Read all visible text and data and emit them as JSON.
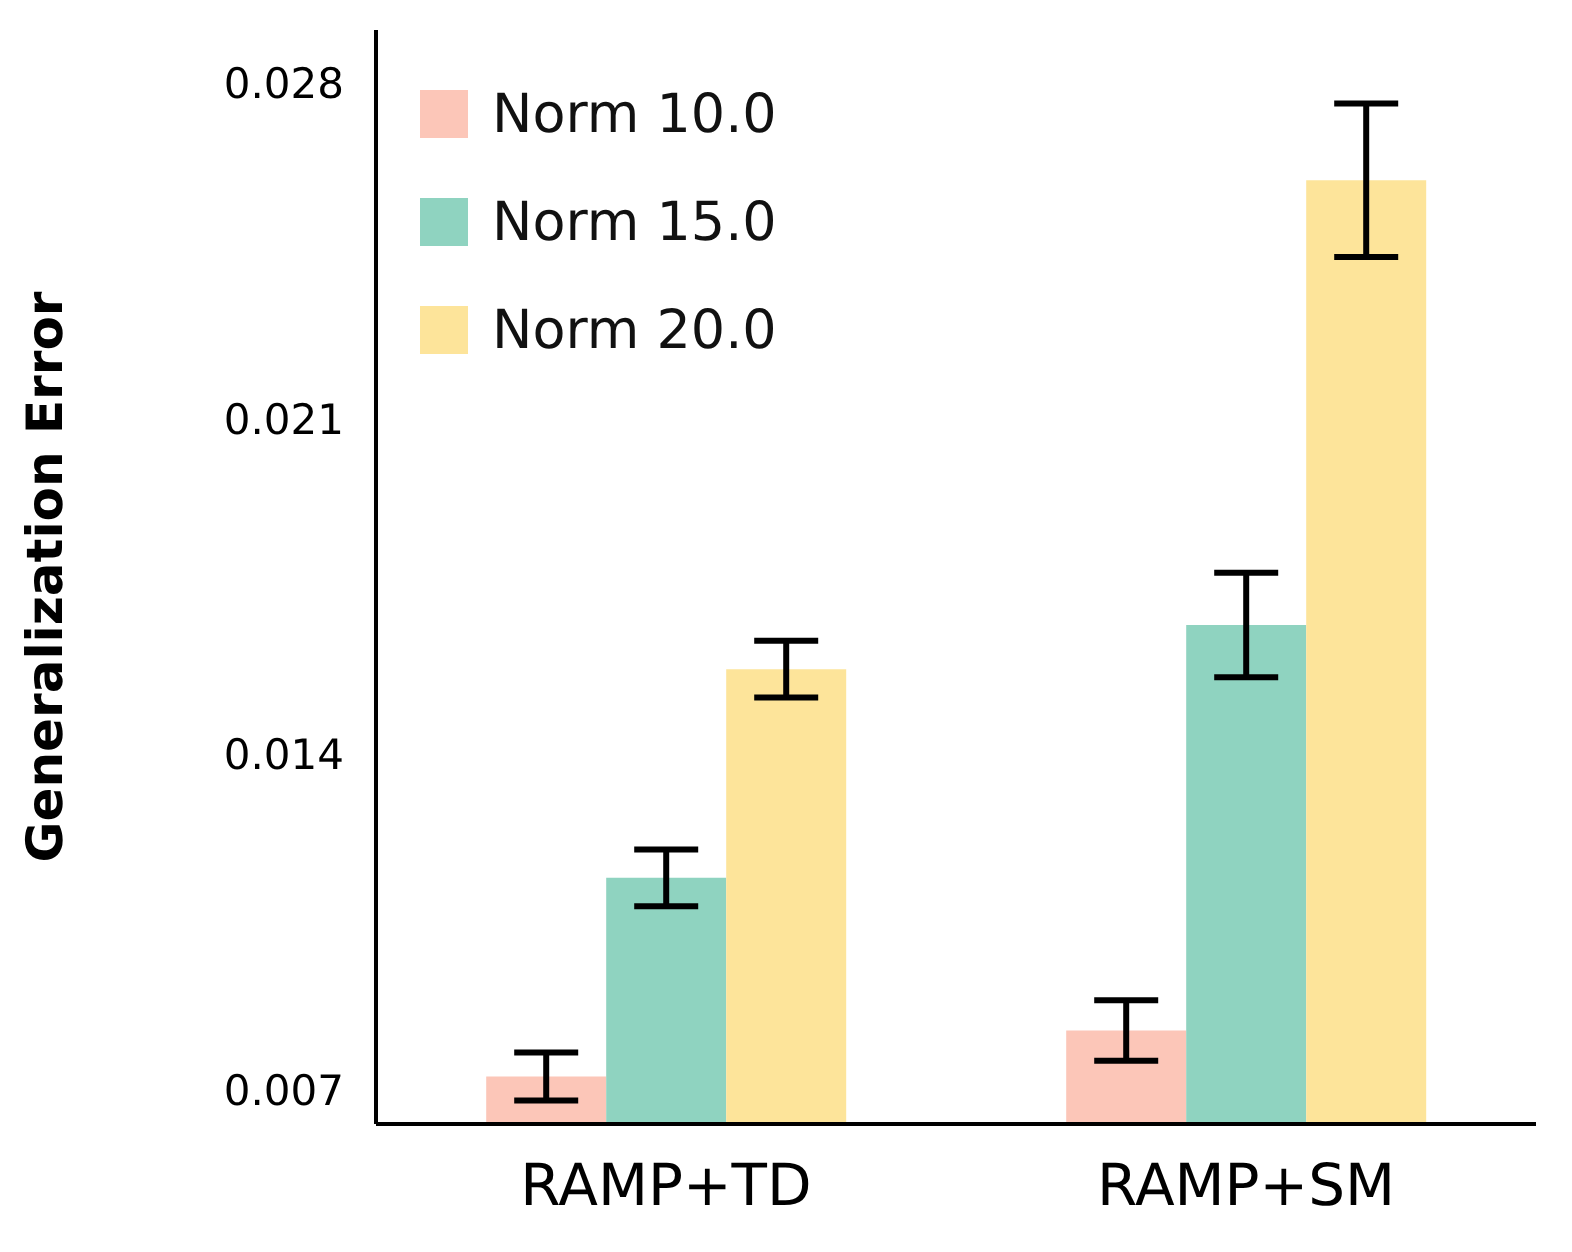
{
  "chart_data": {
    "type": "bar",
    "ylabel": "Generalization Error",
    "categories": [
      "RAMP+TD",
      "RAMP+SM"
    ],
    "series": [
      {
        "name": "Norm 10.0",
        "color": "#fcc6b8",
        "values": [
          0.00729,
          0.00825
        ],
        "errors": [
          0.0005,
          0.00063
        ]
      },
      {
        "name": "Norm 15.0",
        "color": "#8fd3c0",
        "values": [
          0.01143,
          0.0167
        ],
        "errors": [
          0.00059,
          0.00109
        ]
      },
      {
        "name": "Norm 20.0",
        "color": "#fde49a",
        "values": [
          0.01578,
          0.02597
        ],
        "errors": [
          0.00059,
          0.0016
        ]
      }
    ],
    "ylim": [
      0.0063,
      0.0291
    ],
    "yticks": [
      0.007,
      0.014,
      0.021,
      0.028
    ],
    "grid": false,
    "legend": "top left"
  }
}
